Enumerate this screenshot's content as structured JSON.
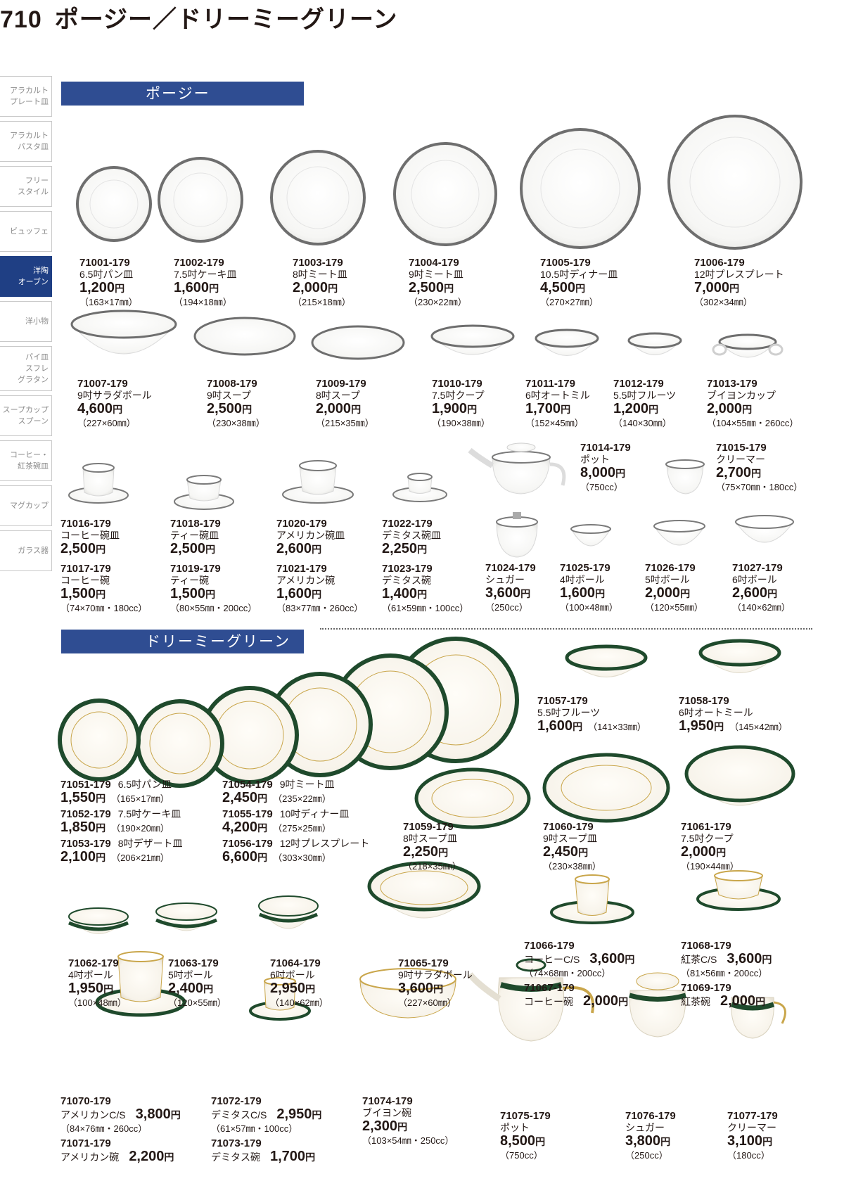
{
  "page": {
    "number": "710",
    "title": "ポージー／ドリーミーグリーン"
  },
  "sidebar": [
    {
      "label": "アラカルト\nプレート皿",
      "active": false
    },
    {
      "label": "アラカルト\nパスタ皿",
      "active": false
    },
    {
      "label": "フリー\nスタイル",
      "active": false
    },
    {
      "label": "ビュッフェ",
      "active": false
    },
    {
      "label": "洋陶\nオーブン",
      "active": true
    },
    {
      "label": "洋小物",
      "active": false
    },
    {
      "label": "パイ皿\nスフレ\nグラタン",
      "active": false
    },
    {
      "label": "スープカップ\nスプーン",
      "active": false
    },
    {
      "label": "コーヒー・\n紅茶碗皿",
      "active": false
    },
    {
      "label": "マグカップ",
      "active": false
    },
    {
      "label": "ガラス器",
      "active": false
    }
  ],
  "sections": {
    "posy": "ポージー",
    "dreamy": "ドリーミーグリーン"
  },
  "yen": "円",
  "posy": [
    {
      "code": "71001-179",
      "name": "6.5吋パン皿",
      "price": "1,200",
      "dims": "（163×17㎜）"
    },
    {
      "code": "71002-179",
      "name": "7.5吋ケーキ皿",
      "price": "1,600",
      "dims": "（194×18㎜）"
    },
    {
      "code": "71003-179",
      "name": "8吋ミート皿",
      "price": "2,000",
      "dims": "（215×18㎜）"
    },
    {
      "code": "71004-179",
      "name": "9吋ミート皿",
      "price": "2,500",
      "dims": "（230×22㎜）"
    },
    {
      "code": "71005-179",
      "name": "10.5吋ディナー皿",
      "price": "4,500",
      "dims": "（270×27㎜）"
    },
    {
      "code": "71006-179",
      "name": "12吋プレスプレート",
      "price": "7,000",
      "dims": "（302×34㎜）"
    },
    {
      "code": "71007-179",
      "name": "9吋サラダボール",
      "price": "4,600",
      "dims": "（227×60㎜）"
    },
    {
      "code": "71008-179",
      "name": "9吋スープ",
      "price": "2,500",
      "dims": "（230×38㎜）"
    },
    {
      "code": "71009-179",
      "name": "8吋スープ",
      "price": "2,000",
      "dims": "（215×35㎜）"
    },
    {
      "code": "71010-179",
      "name": "7.5吋クープ",
      "price": "1,900",
      "dims": "（190×38㎜）"
    },
    {
      "code": "71011-179",
      "name": "6吋オートミル",
      "price": "1,700",
      "dims": "（152×45㎜）"
    },
    {
      "code": "71012-179",
      "name": "5.5吋フルーツ",
      "price": "1,200",
      "dims": "（140×30㎜）"
    },
    {
      "code": "71013-179",
      "name": "ブイヨンカップ",
      "price": "2,000",
      "dims": "（104×55㎜・260cc）"
    },
    {
      "code": "71014-179",
      "name": "ポット",
      "price": "8,000",
      "dims": "（750cc）"
    },
    {
      "code": "71015-179",
      "name": "クリーマー",
      "price": "2,700",
      "dims": "（75×70㎜・180cc）"
    },
    {
      "code": "71016-179",
      "name": "コーヒー碗皿",
      "price": "2,500"
    },
    {
      "code": "71018-179",
      "name": "ティー碗皿",
      "price": "2,500"
    },
    {
      "code": "71020-179",
      "name": "アメリカン碗皿",
      "price": "2,600"
    },
    {
      "code": "71022-179",
      "name": "デミタス碗皿",
      "price": "2,250"
    },
    {
      "code": "71017-179",
      "name": "コーヒー碗",
      "price": "1,500",
      "dims": "（74×70㎜・180cc）"
    },
    {
      "code": "71019-179",
      "name": "ティー碗",
      "price": "1,500",
      "dims": "（80×55㎜・200cc）"
    },
    {
      "code": "71021-179",
      "name": "アメリカン碗",
      "price": "1,600",
      "dims": "（83×77㎜・260cc）"
    },
    {
      "code": "71023-179",
      "name": "デミタス碗",
      "price": "1,400",
      "dims": "（61×59㎜・100cc）"
    },
    {
      "code": "71024-179",
      "name": "シュガー",
      "price": "3,600",
      "dims": "（250cc）"
    },
    {
      "code": "71025-179",
      "name": "4吋ボール",
      "price": "1,600",
      "dims": "（100×48㎜）"
    },
    {
      "code": "71026-179",
      "name": "5吋ボール",
      "price": "2,000",
      "dims": "（120×55㎜）"
    },
    {
      "code": "71027-179",
      "name": "6吋ボール",
      "price": "2,600",
      "dims": "（140×62㎜）"
    }
  ],
  "dreamy": [
    {
      "code": "71057-179",
      "name": "5.5吋フルーツ",
      "price": "1,600",
      "dims": "（141×33㎜）"
    },
    {
      "code": "71058-179",
      "name": "6吋オートミール",
      "price": "1,950",
      "dims": "（145×42㎜）"
    },
    {
      "code": "71051-179",
      "name": "6.5吋パン皿",
      "price": "1,550",
      "dims": "（165×17㎜）"
    },
    {
      "code": "71052-179",
      "name": "7.5吋ケーキ皿",
      "price": "1,850",
      "dims": "（190×20㎜）"
    },
    {
      "code": "71053-179",
      "name": "8吋デザート皿",
      "price": "2,100",
      "dims": "（206×21㎜）"
    },
    {
      "code": "71054-179",
      "name": "9吋ミート皿",
      "price": "2,450",
      "dims": "（235×22㎜）"
    },
    {
      "code": "71055-179",
      "name": "10吋ディナー皿",
      "price": "4,200",
      "dims": "（275×25㎜）"
    },
    {
      "code": "71056-179",
      "name": "12吋プレスプレート",
      "price": "6,600",
      "dims": "（303×30㎜）"
    },
    {
      "code": "71059-179",
      "name": "8吋スープ皿",
      "price": "2,250",
      "dims": "（218×35㎜）"
    },
    {
      "code": "71060-179",
      "name": "9吋スープ皿",
      "price": "2,450",
      "dims": "（230×38㎜）"
    },
    {
      "code": "71061-179",
      "name": "7.5吋クープ",
      "price": "2,000",
      "dims": "（190×44㎜）"
    },
    {
      "code": "71062-179",
      "name": "4吋ボール",
      "price": "1,950",
      "dims": "（100×48㎜）"
    },
    {
      "code": "71063-179",
      "name": "5吋ボール",
      "price": "2,400",
      "dims": "（120×55㎜）"
    },
    {
      "code": "71064-179",
      "name": "6吋ボール",
      "price": "2,950",
      "dims": "（140×62㎜）"
    },
    {
      "code": "71065-179",
      "name": "9吋サラダボール",
      "price": "3,600",
      "dims": "（227×60㎜）"
    },
    {
      "code": "71066-179",
      "name": "コーヒーC/S",
      "price": "3,600",
      "dims": "（74×68㎜・200cc）"
    },
    {
      "code": "71067-179",
      "name": "コーヒー碗",
      "price": "2,000"
    },
    {
      "code": "71068-179",
      "name": "紅茶C/S",
      "price": "3,600",
      "dims": "（81×56㎜・200cc）"
    },
    {
      "code": "71069-179",
      "name": "紅茶碗",
      "price": "2,000"
    },
    {
      "code": "71070-179",
      "name": "アメリカンC/S",
      "price": "3,800",
      "dims": "（84×76㎜・260cc）"
    },
    {
      "code": "71071-179",
      "name": "アメリカン碗",
      "price": "2,200"
    },
    {
      "code": "71072-179",
      "name": "デミタスC/S",
      "price": "2,950",
      "dims": "（61×57㎜・100cc）"
    },
    {
      "code": "71073-179",
      "name": "デミタス碗",
      "price": "1,700"
    },
    {
      "code": "71074-179",
      "name": "ブイヨン碗",
      "price": "2,300",
      "dims": "（103×54㎜・250cc）"
    },
    {
      "code": "71075-179",
      "name": "ポット",
      "price": "8,500",
      "dims": "（750cc）"
    },
    {
      "code": "71076-179",
      "name": "シュガー",
      "price": "3,800",
      "dims": "（250cc）"
    },
    {
      "code": "71077-179",
      "name": "クリーマー",
      "price": "3,100",
      "dims": "（180cc）"
    }
  ],
  "colors": {
    "navy": "#2f4d92",
    "platinum_rim": "#6e6e6e",
    "green_rim": "#1f4a2c",
    "gold": "#c9a64b"
  }
}
